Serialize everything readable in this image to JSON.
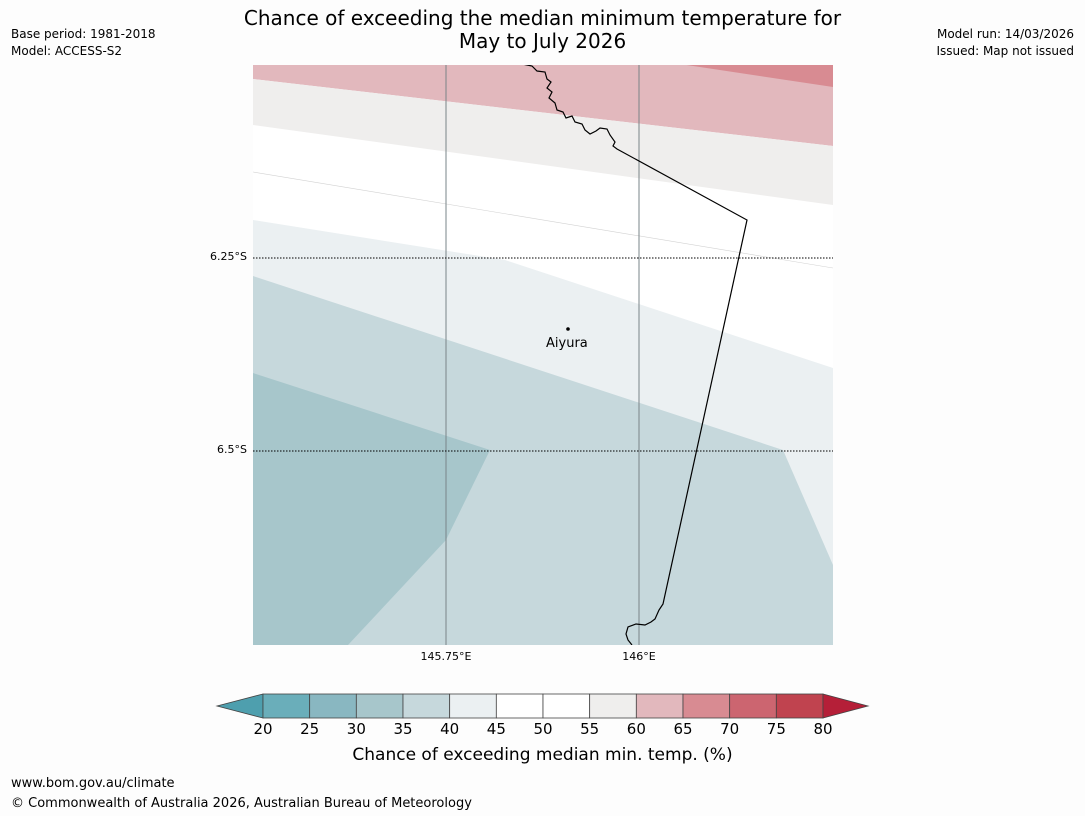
{
  "title": {
    "line1": "Chance of exceeding the median minimum temperature for",
    "line2": "May to July 2026"
  },
  "meta": {
    "base_period": "Base period: 1981-2018",
    "model": "Model: ACCESS-S2",
    "model_run": "Model run: 14/03/2026",
    "issued": "Issued: Map not issued"
  },
  "map": {
    "lat_labels": [
      "6.25°S",
      "6.5°S"
    ],
    "lon_labels": [
      "145.75°E",
      "146°E"
    ],
    "places": [
      {
        "name": "Aiyura"
      }
    ]
  },
  "colorbar": {
    "title": "Chance of exceeding median min. temp. (%)",
    "ticks": [
      "20",
      "25",
      "30",
      "35",
      "40",
      "45",
      "50",
      "55",
      "60",
      "65",
      "70",
      "75",
      "80"
    ],
    "colors": [
      "#6aaeba",
      "#89b7c1",
      "#a7c6cb",
      "#c6d8dc",
      "#ebf0f2",
      "#ffffff",
      "#ffffff",
      "#efeeed",
      "#e2b8bd",
      "#d88b92",
      "#cc6570",
      "#c0434f"
    ],
    "under_color": "#4e9fae",
    "over_color": "#b51f38"
  },
  "footer": {
    "url": "www.bom.gov.au/climate",
    "copyright": "© Commonwealth of Australia 2026, Australian Bureau of Meteorology"
  }
}
